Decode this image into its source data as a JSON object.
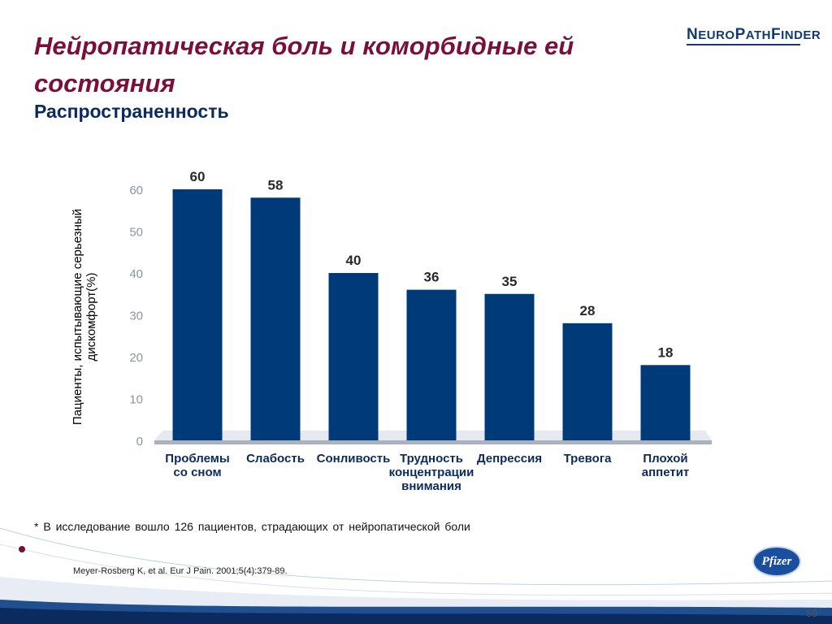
{
  "header": {
    "title": "Нейропатическая боль и коморбидные ей состояния",
    "subtitle": "Распространенность",
    "logo_text_1": "N",
    "logo_text_2": "EURO",
    "logo_text_3": "P",
    "logo_text_4": "ATH",
    "logo_text_5": "F",
    "logo_text_6": "INDER"
  },
  "chart_data": {
    "type": "bar",
    "title": "",
    "ylabel": "Пациенты, испытывающие серьезный дискомфорт(%)",
    "xlabel": "",
    "ylim": [
      0,
      60
    ],
    "yticks": [
      0,
      10,
      20,
      30,
      40,
      50,
      60
    ],
    "categories": [
      "Проблемы со сном",
      "Слабость",
      "Сонливость",
      "Трудность концентрации внимания",
      "Депрессия",
      "Тревога",
      "Плохой аппетит"
    ],
    "category_lines": [
      [
        "Проблемы",
        "со сном"
      ],
      [
        "Слабость"
      ],
      [
        "Сонливость"
      ],
      [
        "Трудность",
        "концентрации",
        "внимания"
      ],
      [
        "Депрессия"
      ],
      [
        "Тревога"
      ],
      [
        "Плохой",
        "аппетит"
      ]
    ],
    "values": [
      60,
      58,
      40,
      36,
      35,
      28,
      18
    ],
    "bar_color": "#003a78",
    "axis_color": "#aab2bf"
  },
  "footnote": "* В исследование вошло 126 пациентов, страдающих от нейропатической боли",
  "citation": "Meyer-Rosberg K, et al. Eur J Pain. 2001;5(4):379-89.",
  "pfizer_logo": "Pfizer",
  "page_number": "59"
}
